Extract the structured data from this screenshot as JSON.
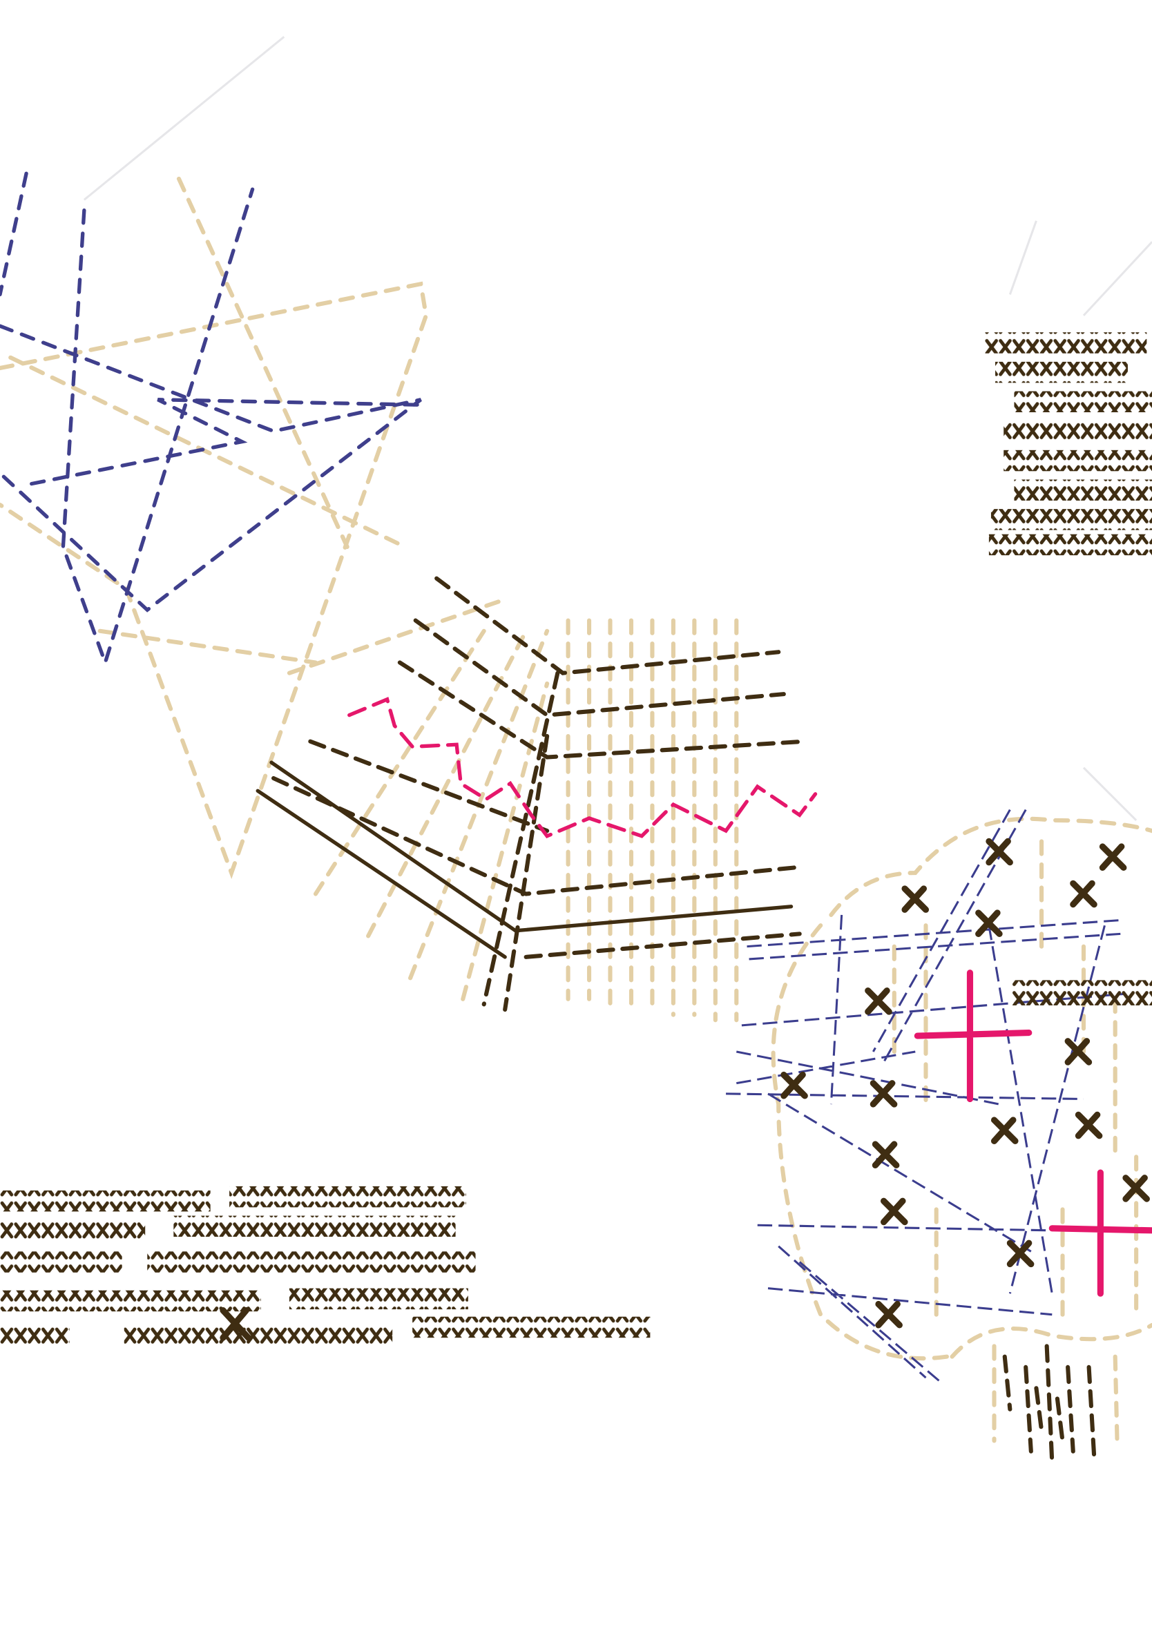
{
  "artwork": {
    "description_type": "stitch-style abstract drawing",
    "colors": {
      "background": "#ffffff",
      "tan": "#e3cfa5",
      "navy": "#3f3f8c",
      "brown": "#3f2d12",
      "pink": "#e5176b"
    }
  }
}
